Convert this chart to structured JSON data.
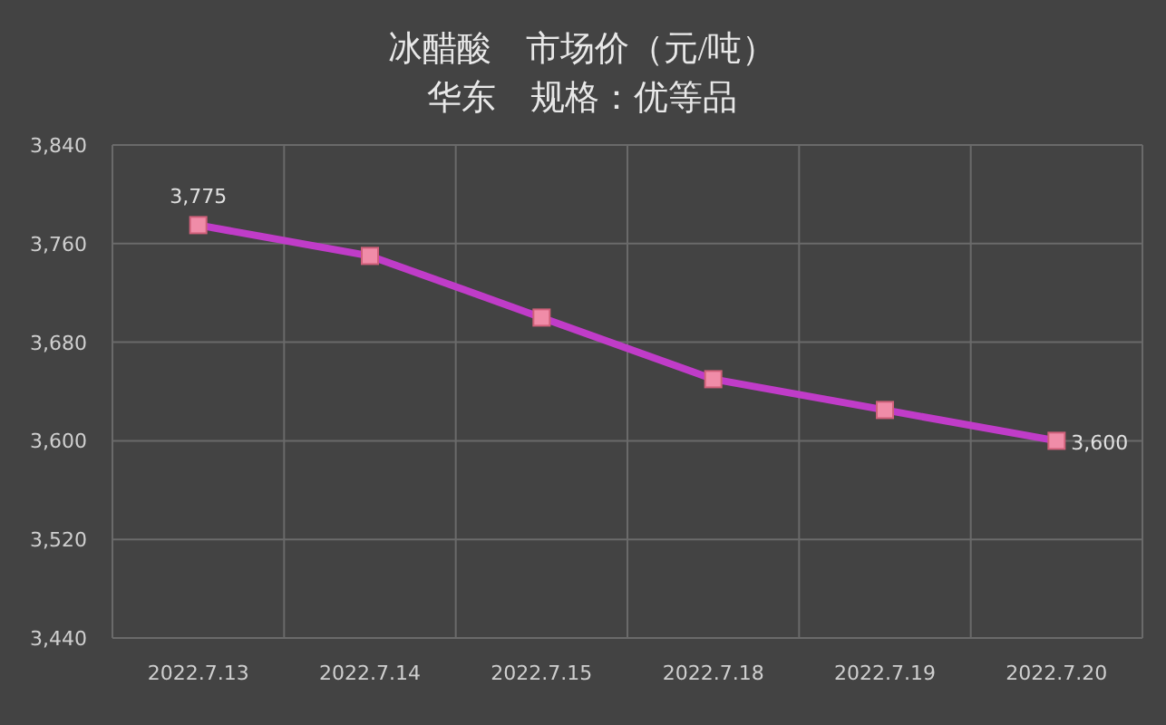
{
  "chart_data": {
    "type": "line",
    "title": "冰醋酸　市场价（元/吨）",
    "subtitle": "华东　规格：优等品",
    "categories": [
      "2022.7.13",
      "2022.7.14",
      "2022.7.15",
      "2022.7.18",
      "2022.7.19",
      "2022.7.20"
    ],
    "series": [
      {
        "color": "#c03cc8",
        "values": [
          3775,
          3750,
          3700,
          3650,
          3625,
          3600
        ],
        "value_labels": [
          "3,775",
          null,
          null,
          null,
          null,
          "3,600"
        ]
      }
    ],
    "ylim": [
      3440,
      3840
    ],
    "yticks": [
      {
        "value": 3440,
        "label": "3,440"
      },
      {
        "value": 3520,
        "label": "3,520"
      },
      {
        "value": 3600,
        "label": "3,600"
      },
      {
        "value": 3680,
        "label": "3,680"
      },
      {
        "value": 3760,
        "label": "3,760"
      },
      {
        "value": 3840,
        "label": "3,840"
      }
    ],
    "grid": true,
    "marker": "square",
    "line_style": "solid"
  }
}
